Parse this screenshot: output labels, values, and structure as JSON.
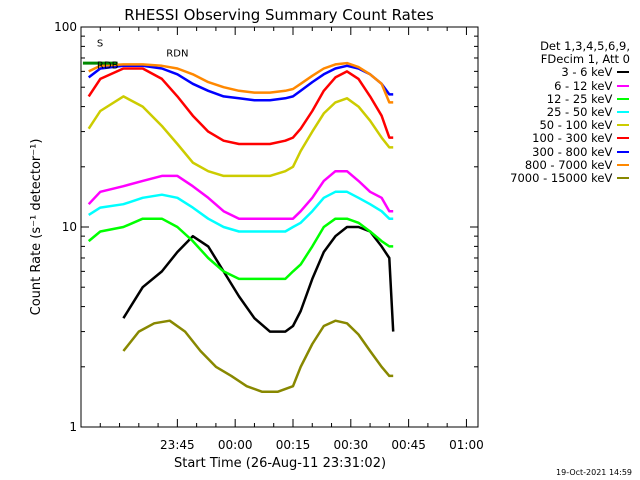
{
  "chart_data": {
    "type": "line",
    "title": "RHESSI Observing Summary Count Rates",
    "xlabel": "Start Time (26-Aug-11 23:31:02)",
    "ylabel": "Count Rate (s⁻¹ detector⁻¹)",
    "yscale": "log",
    "ylim": [
      1,
      100
    ],
    "y_ticks": [
      "1",
      "10",
      "100"
    ],
    "x_range_minutes": [
      -11,
      92
    ],
    "x_ticks": [
      {
        "label": "23:45",
        "minute": 14
      },
      {
        "label": "00:00",
        "minute": 29
      },
      {
        "label": "00:15",
        "minute": 44
      },
      {
        "label": "00:30",
        "minute": 59
      },
      {
        "label": "00:45",
        "minute": 74
      },
      {
        "label": "01:00",
        "minute": 89
      }
    ],
    "legend_header": [
      "Det 1,3,4,5,6,9,",
      "FDecim 1, Att 0"
    ],
    "legend_position": "right",
    "series": [
      {
        "name": "3 - 6 keV",
        "color": "#000000",
        "points": [
          [
            0,
            3.5
          ],
          [
            5,
            5.0
          ],
          [
            10,
            6.0
          ],
          [
            14,
            7.5
          ],
          [
            18,
            9.0
          ],
          [
            22,
            8.0
          ],
          [
            26,
            6.0
          ],
          [
            30,
            4.5
          ],
          [
            34,
            3.5
          ],
          [
            38,
            3.0
          ],
          [
            42,
            3.0
          ],
          [
            44,
            3.2
          ],
          [
            46,
            3.8
          ],
          [
            49,
            5.5
          ],
          [
            52,
            7.5
          ],
          [
            55,
            9.0
          ],
          [
            58,
            10.0
          ],
          [
            61,
            10.0
          ],
          [
            64,
            9.5
          ],
          [
            67,
            8.0
          ],
          [
            69,
            7.0
          ],
          [
            70,
            3.0
          ]
        ]
      },
      {
        "name": "6 - 12 keV",
        "color": "#ff00ff",
        "points": [
          [
            -9,
            13
          ],
          [
            -6,
            15
          ],
          [
            0,
            16
          ],
          [
            5,
            17
          ],
          [
            10,
            18
          ],
          [
            14,
            18
          ],
          [
            18,
            16
          ],
          [
            22,
            14
          ],
          [
            26,
            12
          ],
          [
            30,
            11
          ],
          [
            34,
            11
          ],
          [
            38,
            11
          ],
          [
            42,
            11
          ],
          [
            44,
            11
          ],
          [
            46,
            12
          ],
          [
            49,
            14
          ],
          [
            52,
            17
          ],
          [
            55,
            19
          ],
          [
            58,
            19
          ],
          [
            61,
            17
          ],
          [
            64,
            15
          ],
          [
            67,
            14
          ],
          [
            69,
            12
          ],
          [
            70,
            12
          ]
        ]
      },
      {
        "name": "12 - 25 keV",
        "color": "#00ff00",
        "points": [
          [
            -9,
            8.5
          ],
          [
            -6,
            9.5
          ],
          [
            0,
            10
          ],
          [
            5,
            11
          ],
          [
            10,
            11
          ],
          [
            14,
            10
          ],
          [
            18,
            8.5
          ],
          [
            22,
            7
          ],
          [
            26,
            6
          ],
          [
            30,
            5.5
          ],
          [
            34,
            5.5
          ],
          [
            38,
            5.5
          ],
          [
            42,
            5.5
          ],
          [
            44,
            6
          ],
          [
            46,
            6.5
          ],
          [
            49,
            8
          ],
          [
            52,
            10
          ],
          [
            55,
            11
          ],
          [
            58,
            11
          ],
          [
            61,
            10.5
          ],
          [
            64,
            9.5
          ],
          [
            67,
            8.5
          ],
          [
            69,
            8
          ],
          [
            70,
            8
          ]
        ]
      },
      {
        "name": "25 - 50 keV",
        "color": "#00ffff",
        "points": [
          [
            -9,
            11.5
          ],
          [
            -6,
            12.5
          ],
          [
            0,
            13
          ],
          [
            5,
            14
          ],
          [
            10,
            14.5
          ],
          [
            14,
            14
          ],
          [
            18,
            12.5
          ],
          [
            22,
            11
          ],
          [
            26,
            10
          ],
          [
            30,
            9.5
          ],
          [
            34,
            9.5
          ],
          [
            38,
            9.5
          ],
          [
            42,
            9.5
          ],
          [
            44,
            10
          ],
          [
            46,
            10.5
          ],
          [
            49,
            12
          ],
          [
            52,
            14
          ],
          [
            55,
            15
          ],
          [
            58,
            15
          ],
          [
            61,
            14
          ],
          [
            64,
            13
          ],
          [
            67,
            12
          ],
          [
            69,
            11
          ],
          [
            70,
            11
          ]
        ]
      },
      {
        "name": "50 - 100 keV",
        "color": "#cccc00",
        "points": [
          [
            -9,
            31
          ],
          [
            -6,
            38
          ],
          [
            0,
            45
          ],
          [
            5,
            40
          ],
          [
            10,
            32
          ],
          [
            14,
            26
          ],
          [
            18,
            21
          ],
          [
            22,
            19
          ],
          [
            26,
            18
          ],
          [
            30,
            18
          ],
          [
            34,
            18
          ],
          [
            38,
            18
          ],
          [
            42,
            19
          ],
          [
            44,
            20
          ],
          [
            46,
            24
          ],
          [
            49,
            30
          ],
          [
            52,
            37
          ],
          [
            55,
            42
          ],
          [
            58,
            44
          ],
          [
            61,
            40
          ],
          [
            64,
            34
          ],
          [
            67,
            28
          ],
          [
            69,
            25
          ],
          [
            70,
            25
          ]
        ]
      },
      {
        "name": "100 - 300 keV",
        "color": "#ff0000",
        "points": [
          [
            -9,
            45
          ],
          [
            -6,
            55
          ],
          [
            0,
            62
          ],
          [
            5,
            62
          ],
          [
            10,
            55
          ],
          [
            14,
            45
          ],
          [
            18,
            36
          ],
          [
            22,
            30
          ],
          [
            26,
            27
          ],
          [
            30,
            26
          ],
          [
            34,
            26
          ],
          [
            38,
            26
          ],
          [
            42,
            27
          ],
          [
            44,
            28
          ],
          [
            46,
            31
          ],
          [
            49,
            38
          ],
          [
            52,
            48
          ],
          [
            55,
            56
          ],
          [
            58,
            60
          ],
          [
            61,
            55
          ],
          [
            64,
            45
          ],
          [
            67,
            36
          ],
          [
            69,
            28
          ],
          [
            70,
            28
          ]
        ]
      },
      {
        "name": "300 - 800 keV",
        "color": "#0000ff",
        "points": [
          [
            -9,
            56
          ],
          [
            -6,
            62
          ],
          [
            0,
            64
          ],
          [
            5,
            64
          ],
          [
            10,
            62
          ],
          [
            14,
            58
          ],
          [
            18,
            52
          ],
          [
            22,
            48
          ],
          [
            26,
            45
          ],
          [
            30,
            44
          ],
          [
            34,
            43
          ],
          [
            38,
            43
          ],
          [
            42,
            44
          ],
          [
            44,
            45
          ],
          [
            46,
            48
          ],
          [
            49,
            53
          ],
          [
            52,
            58
          ],
          [
            55,
            62
          ],
          [
            58,
            64
          ],
          [
            61,
            62
          ],
          [
            64,
            58
          ],
          [
            67,
            52
          ],
          [
            69,
            46
          ],
          [
            70,
            46
          ]
        ]
      },
      {
        "name": "800 - 7000 keV",
        "color": "#ff8800",
        "points": [
          [
            -9,
            60
          ],
          [
            -6,
            64
          ],
          [
            0,
            65
          ],
          [
            5,
            65
          ],
          [
            10,
            64
          ],
          [
            14,
            62
          ],
          [
            18,
            58
          ],
          [
            22,
            53
          ],
          [
            26,
            50
          ],
          [
            30,
            48
          ],
          [
            34,
            47
          ],
          [
            38,
            47
          ],
          [
            42,
            48
          ],
          [
            44,
            49
          ],
          [
            46,
            52
          ],
          [
            49,
            57
          ],
          [
            52,
            62
          ],
          [
            55,
            65
          ],
          [
            58,
            66
          ],
          [
            61,
            63
          ],
          [
            64,
            58
          ],
          [
            67,
            52
          ],
          [
            69,
            42
          ],
          [
            70,
            42
          ]
        ]
      },
      {
        "name": "7000 - 15000 keV",
        "color": "#888800",
        "points": [
          [
            0,
            2.4
          ],
          [
            4,
            3.0
          ],
          [
            8,
            3.3
          ],
          [
            12,
            3.4
          ],
          [
            16,
            3.0
          ],
          [
            20,
            2.4
          ],
          [
            24,
            2.0
          ],
          [
            28,
            1.8
          ],
          [
            32,
            1.6
          ],
          [
            36,
            1.5
          ],
          [
            40,
            1.5
          ],
          [
            44,
            1.6
          ],
          [
            46,
            2.0
          ],
          [
            49,
            2.6
          ],
          [
            52,
            3.2
          ],
          [
            55,
            3.4
          ],
          [
            58,
            3.3
          ],
          [
            61,
            2.9
          ],
          [
            64,
            2.4
          ],
          [
            67,
            2.0
          ],
          [
            69,
            1.8
          ],
          [
            70,
            1.8
          ]
        ]
      }
    ],
    "annotations": [
      {
        "text": "S",
        "color": "#ff8800"
      },
      {
        "text": "RDN",
        "color": "#000000"
      },
      {
        "text": "RDB",
        "color": "#008800"
      }
    ]
  },
  "footer_text": "19-Oct-2021 14:59"
}
